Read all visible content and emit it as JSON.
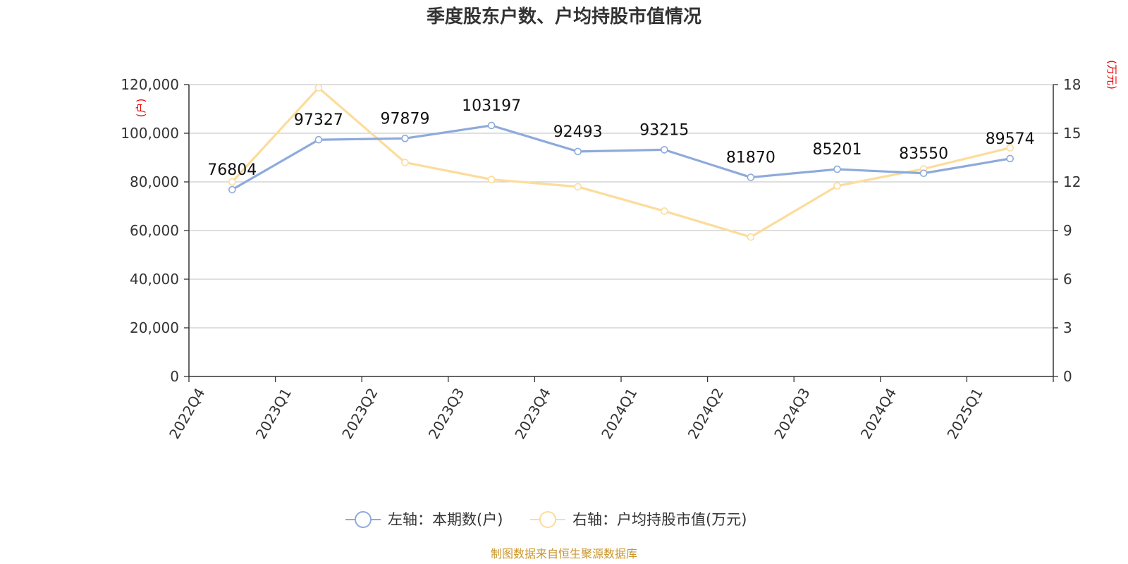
{
  "chart_data": {
    "type": "line",
    "title": "季度股东户数、户均持股市值情况",
    "categories": [
      "2022Q4",
      "2023Q1",
      "2023Q2",
      "2023Q3",
      "2023Q4",
      "2024Q1",
      "2024Q2",
      "2024Q3",
      "2024Q4",
      "2025Q1"
    ],
    "y_left": {
      "unit": "(户)",
      "range": [
        0,
        120000
      ],
      "ticks": [
        "0",
        "20,000",
        "40,000",
        "60,000",
        "80,000",
        "100,000",
        "120,000"
      ]
    },
    "y_right": {
      "unit": "(万元)",
      "range": [
        0,
        18
      ],
      "ticks": [
        "0",
        "3",
        "6",
        "9",
        "12",
        "15",
        "18"
      ]
    },
    "grid": true,
    "legend_position": "bottom",
    "series": [
      {
        "name": "左轴：本期数(户)",
        "axis": "left",
        "color": "#8eaadb",
        "values": [
          76804,
          97327,
          97879,
          103197,
          92493,
          93215,
          81870,
          85201,
          83550,
          89574
        ],
        "labels": [
          "76804",
          "97327",
          "97879",
          "103197",
          "92493",
          "93215",
          "81870",
          "85201",
          "83550",
          "89574"
        ]
      },
      {
        "name": "右轴：户均持股市值(万元)",
        "axis": "right",
        "color": "#fcdc9c",
        "values": [
          12.0,
          17.8,
          13.2,
          12.15,
          11.7,
          10.2,
          8.6,
          11.75,
          12.8,
          14.1
        ]
      }
    ],
    "source": "制图数据来自恒生聚源数据库"
  }
}
